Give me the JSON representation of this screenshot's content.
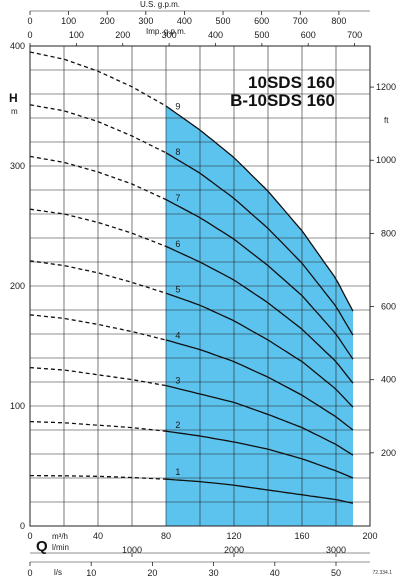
{
  "chart_data": {
    "type": "line",
    "title_line1": "10SDS 160",
    "title_line2": "B-10SDS 160",
    "colors": {
      "band": "#5cc3ee",
      "line": "#111111",
      "grid": "#222222"
    },
    "y_axis": {
      "label": "H",
      "unit": "m",
      "ylim": [
        0,
        400
      ],
      "ticks": [
        0,
        100,
        200,
        300,
        400
      ]
    },
    "y_axis_right": {
      "unit": "ft",
      "ticks": [
        "200",
        "400",
        "600",
        "800",
        "1000",
        "1200"
      ]
    },
    "x_axis": {
      "label": "Q",
      "unit": "m³/h",
      "xlim": [
        0,
        200
      ],
      "ticks": [
        "0",
        "40",
        "80",
        "120",
        "160",
        "200"
      ]
    },
    "x_axis_lmin": {
      "unit": "l/min",
      "ticks": [
        "1000",
        "2000",
        "3000"
      ]
    },
    "x_axis_ls": {
      "unit": "l/s",
      "ticks": [
        "0",
        "10",
        "20",
        "30",
        "40",
        "50"
      ]
    },
    "x_axis_us": {
      "unit": "U.S. g.p.m.",
      "ticks": [
        "0",
        "100",
        "200",
        "300",
        "400",
        "500",
        "600",
        "700",
        "800"
      ]
    },
    "x_axis_imp": {
      "unit": "Imp. g.p.m.",
      "ticks": [
        "0",
        "100",
        "200",
        "300",
        "400",
        "500",
        "600",
        "700"
      ]
    },
    "operating_range": [
      80,
      190
    ],
    "series": [
      {
        "name": "1",
        "x": [
          0,
          20,
          40,
          60,
          80,
          100,
          120,
          140,
          160,
          180,
          190
        ],
        "y": [
          42,
          41.8,
          41.4,
          40.4,
          39,
          37,
          34,
          30,
          26,
          22,
          19
        ]
      },
      {
        "name": "2",
        "x": [
          0,
          20,
          40,
          60,
          80,
          100,
          120,
          140,
          160,
          180,
          190
        ],
        "y": [
          87,
          86,
          84,
          82,
          79,
          75,
          70,
          64,
          56,
          46,
          40
        ]
      },
      {
        "name": "3",
        "x": [
          0,
          20,
          40,
          60,
          80,
          100,
          120,
          140,
          160,
          180,
          190
        ],
        "y": [
          132,
          130,
          126,
          122,
          117,
          110,
          103,
          93,
          82,
          68,
          59
        ]
      },
      {
        "name": "4",
        "x": [
          0,
          20,
          40,
          60,
          80,
          100,
          120,
          140,
          160,
          180,
          190
        ],
        "y": [
          176,
          173,
          168,
          162,
          155,
          147,
          137,
          124,
          109,
          91,
          80
        ]
      },
      {
        "name": "5",
        "x": [
          0,
          20,
          40,
          60,
          80,
          100,
          120,
          140,
          160,
          180,
          190
        ],
        "y": [
          221,
          217,
          211,
          203,
          194,
          184,
          171,
          155,
          137,
          114,
          99
        ]
      },
      {
        "name": "6",
        "x": [
          0,
          20,
          40,
          60,
          80,
          100,
          120,
          140,
          160,
          180,
          190
        ],
        "y": [
          264,
          260,
          253,
          244,
          233,
          220,
          205,
          186,
          164,
          137,
          119
        ]
      },
      {
        "name": "7",
        "x": [
          0,
          20,
          40,
          60,
          80,
          100,
          120,
          140,
          160,
          180,
          190
        ],
        "y": [
          308,
          303,
          295,
          285,
          272,
          257,
          239,
          217,
          192,
          160,
          139
        ]
      },
      {
        "name": "8",
        "x": [
          0,
          20,
          40,
          60,
          80,
          100,
          120,
          140,
          160,
          180,
          190
        ],
        "y": [
          351,
          346,
          337,
          325,
          311,
          294,
          273,
          248,
          219,
          183,
          159
        ]
      },
      {
        "name": "9",
        "x": [
          0,
          20,
          40,
          60,
          80,
          100,
          120,
          140,
          160,
          180,
          190
        ],
        "y": [
          395,
          389,
          379,
          366,
          350,
          330,
          307,
          279,
          246,
          206,
          179
        ]
      }
    ],
    "corner_code": "72.334.1"
  }
}
